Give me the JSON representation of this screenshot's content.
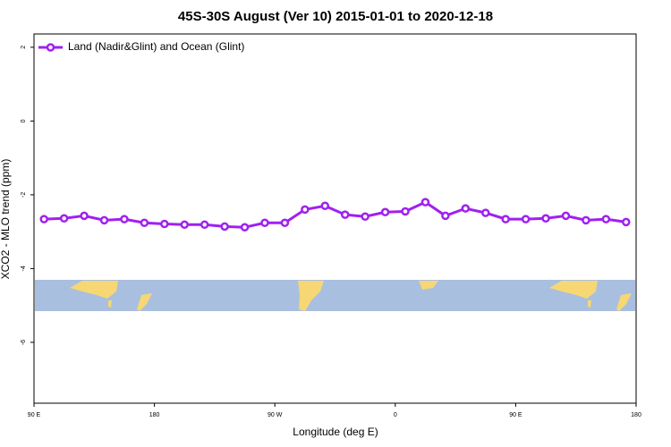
{
  "chart_data": {
    "type": "line",
    "title": "45S-30S August (Ver 10)   2015-01-01 to 2020-12-18",
    "xlabel": "Longitude (deg E)",
    "ylabel": "XCO2 - MLO trend (ppm)",
    "x": [
      97.5,
      112.5,
      127.5,
      142.5,
      157.5,
      172.5,
      187.5,
      202.5,
      217.5,
      232.5,
      247.5,
      262.5,
      277.5,
      292.5,
      307.5,
      322.5,
      337.5,
      352.5,
      367.5,
      382.5,
      397.5,
      412.5,
      427.5,
      442.5,
      457.5,
      472.5,
      487.5,
      502.5,
      517.5,
      532.5
    ],
    "series": [
      {
        "name": "Land (Nadir&Glint) and Ocean (Glint)",
        "color": "#a020f0",
        "values": [
          -2.66,
          -2.64,
          -2.57,
          -2.69,
          -2.66,
          -2.76,
          -2.79,
          -2.81,
          -2.81,
          -2.86,
          -2.88,
          -2.76,
          -2.76,
          -2.4,
          -2.3,
          -2.54,
          -2.59,
          -2.47,
          -2.45,
          -2.2,
          -2.57,
          -2.37,
          -2.49,
          -2.66,
          -2.66,
          -2.64,
          -2.57,
          -2.69,
          -2.66,
          -2.74
        ]
      }
    ],
    "xlim": [
      90,
      540
    ],
    "xticks": [
      {
        "value": 90,
        "label": "90 E"
      },
      180,
      {
        "value": 270,
        "label": "90 W"
      },
      {
        "value": 360,
        "label": "0"
      },
      {
        "value": 450,
        "label": "90 E"
      },
      {
        "value": 540,
        "label": "180"
      }
    ],
    "ylim": [
      -7.65,
      2.36
    ],
    "yticks": [
      2,
      0,
      -2,
      -4,
      -6
    ],
    "legend": "top-left"
  }
}
